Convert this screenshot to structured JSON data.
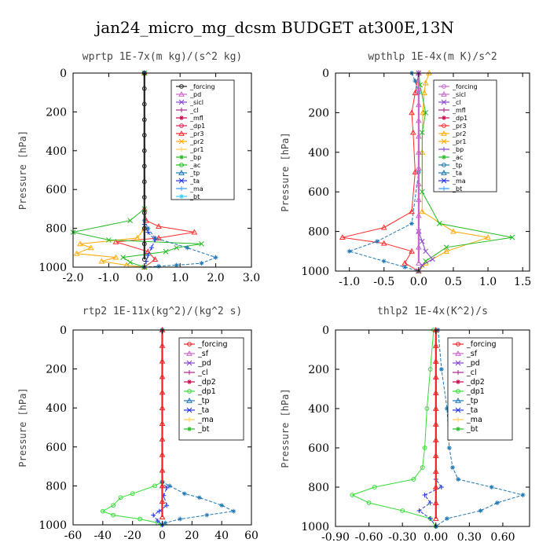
{
  "figure_title": "jan24_micro_mg_dcsm  BUDGET at300E,13N",
  "chart_data": [
    {
      "type": "line",
      "title": "wprtp  1E-7x(m kg)/(s^2 kg)",
      "ylabel": "Pressure [hPa]",
      "xlim": [
        -2.0,
        3.0
      ],
      "ylim": [
        1000,
        0
      ],
      "xticks": [
        "-2.0",
        "-1.0",
        "0.0",
        "1.0",
        "2.0",
        "3.0"
      ],
      "yticks": [
        "0",
        "200",
        "400",
        "600",
        "800",
        "1000"
      ],
      "legend": [
        "_forcing",
        "_pd",
        "_sicl",
        "_cl",
        "_mfl",
        "_dp1",
        "_pr3",
        "_pr2",
        "_pr1",
        "_bp",
        "_ac",
        "_tp",
        "_ta",
        "_ma",
        "_bt"
      ],
      "series": [
        {
          "name": "_pr3",
          "color": "#ff2a2a",
          "marker": "tri",
          "x": [
            0,
            0,
            0.05,
            0.4,
            1.4,
            0.4,
            -0.8,
            0.1,
            0.3,
            0
          ],
          "y": [
            0,
            700,
            760,
            790,
            820,
            850,
            870,
            920,
            960,
            1000
          ]
        },
        {
          "name": "_pr2",
          "color": "#ffaa00",
          "marker": "tri",
          "x": [
            0,
            0,
            -0.2,
            -1.8,
            -1.5,
            -1.9,
            -0.8,
            -1.2,
            -0.5,
            0
          ],
          "y": [
            0,
            800,
            850,
            880,
            900,
            930,
            950,
            970,
            990,
            1000
          ]
        },
        {
          "name": "_ac",
          "color": "#22bb22",
          "marker": "x",
          "x": [
            0,
            0,
            -0.4,
            -2.0,
            -1.0,
            1.6,
            0.9,
            0.6,
            -0.6,
            -0.4,
            0
          ],
          "y": [
            0,
            700,
            760,
            820,
            860,
            880,
            900,
            920,
            950,
            975,
            1000
          ]
        },
        {
          "name": "_tp",
          "color": "#1f77b4",
          "marker": "star",
          "x": [
            0,
            0,
            0.1,
            0.3,
            1.2,
            2.0,
            1.6,
            0.9,
            0.4,
            0
          ],
          "y": [
            0,
            760,
            800,
            850,
            900,
            950,
            980,
            990,
            995,
            1000
          ]
        },
        {
          "name": "_ta",
          "color": "#2233dd",
          "marker": "plus",
          "x": [
            0,
            0,
            0.1,
            0.3,
            0.2,
            0.1,
            0.05,
            0
          ],
          "y": [
            0,
            780,
            820,
            860,
            900,
            940,
            970,
            1000
          ]
        },
        {
          "name": "_forcing",
          "color": "#222222",
          "marker": "circle",
          "x": [
            0,
            0,
            0,
            0,
            0,
            0,
            0,
            0,
            0,
            0,
            0,
            0,
            0
          ],
          "y": [
            0,
            80,
            160,
            240,
            320,
            400,
            480,
            560,
            640,
            720,
            800,
            880,
            960
          ]
        }
      ]
    },
    {
      "type": "line",
      "title": "wpthlp  1E-4x(m K)/s^2",
      "ylabel": "Pressure [hPa]",
      "xlim": [
        -1.2,
        1.6
      ],
      "ylim": [
        1000,
        0
      ],
      "xticks": [
        "-1.0",
        "-0.5",
        "0.0",
        "0.5",
        "1.0",
        "1.5"
      ],
      "yticks": [
        "0",
        "200",
        "400",
        "600",
        "800",
        "1000"
      ],
      "legend": [
        "_forcing",
        "_sicl",
        "_cl",
        "_mfl",
        "_dp1",
        "_pr3",
        "_pr2",
        "_pr1",
        "_bp",
        "_ac",
        "_tp",
        "_ta",
        "_ma",
        "_bt"
      ],
      "series": [
        {
          "name": "_pr3",
          "color": "#ff2a2a",
          "marker": "tri",
          "x": [
            0,
            -0.05,
            -0.1,
            -0.08,
            -0.05,
            -0.1,
            -0.5,
            -1.1,
            -0.5,
            -0.1,
            -0.2,
            0
          ],
          "y": [
            0,
            100,
            200,
            300,
            500,
            700,
            780,
            830,
            860,
            900,
            960,
            1000
          ]
        },
        {
          "name": "_pr2",
          "color": "#ffaa00",
          "marker": "tri",
          "x": [
            0.15,
            0.1,
            0.08,
            0.06,
            0.05,
            0.05,
            0.5,
            1.0,
            0.4,
            0.1,
            0
          ],
          "y": [
            0,
            50,
            100,
            200,
            400,
            700,
            800,
            830,
            900,
            960,
            1000
          ]
        },
        {
          "name": "_ac",
          "color": "#22bb22",
          "marker": "x",
          "x": [
            0,
            0.02,
            0.1,
            0.05,
            0.05,
            0.3,
            1.35,
            0.4,
            0.1,
            0
          ],
          "y": [
            0,
            60,
            200,
            300,
            600,
            760,
            830,
            880,
            950,
            1000
          ]
        },
        {
          "name": "_tp",
          "color": "#1f77b4",
          "marker": "star",
          "x": [
            -0.1,
            -0.05,
            0,
            0,
            -0.1,
            -0.6,
            -1.0,
            -0.5,
            -0.2,
            0
          ],
          "y": [
            0,
            40,
            100,
            500,
            760,
            850,
            900,
            950,
            980,
            1000
          ]
        },
        {
          "name": "_bp",
          "color": "#8844cc",
          "marker": "x",
          "x": [
            0,
            0,
            0.05,
            0.1,
            0.2,
            0.05,
            0
          ],
          "y": [
            0,
            800,
            850,
            900,
            940,
            970,
            1000
          ]
        },
        {
          "name": "_forcing",
          "color": "#cc66cc",
          "marker": "tri",
          "x": [
            0,
            0,
            0,
            0,
            0,
            0,
            0,
            0,
            0,
            0,
            0,
            0,
            0
          ],
          "y": [
            0,
            80,
            160,
            240,
            320,
            400,
            480,
            560,
            640,
            720,
            800,
            880,
            960
          ]
        }
      ]
    },
    {
      "type": "line",
      "title": "rtp2  1E-11x(kg^2)/(kg^2 s)",
      "ylabel": "Pressure [hPa]",
      "xlim": [
        -60,
        60
      ],
      "ylim": [
        1000,
        0
      ],
      "xticks": [
        "-60",
        "-40",
        "-20",
        "0",
        "20",
        "40",
        "60"
      ],
      "yticks": [
        "0",
        "200",
        "400",
        "600",
        "800",
        "1000"
      ],
      "legend": [
        "_forcing",
        "_sf",
        "_pd",
        "_cl",
        "_dp2",
        "_dp1",
        "_tp",
        "_ta",
        "_ma",
        "_bt"
      ],
      "series": [
        {
          "name": "_dp1",
          "color": "#33dd33",
          "marker": "circle",
          "x": [
            0,
            0,
            -5,
            -20,
            -28,
            -33,
            -40,
            -33,
            -15,
            -3,
            0
          ],
          "y": [
            0,
            780,
            800,
            840,
            860,
            900,
            930,
            950,
            970,
            990,
            1000
          ]
        },
        {
          "name": "_tp",
          "color": "#1f77b4",
          "marker": "star",
          "x": [
            0,
            0,
            5,
            15,
            25,
            40,
            48,
            30,
            12,
            2,
            0
          ],
          "y": [
            0,
            780,
            800,
            840,
            860,
            900,
            930,
            950,
            970,
            990,
            1000
          ]
        },
        {
          "name": "_ta",
          "color": "#2233dd",
          "marker": "plus",
          "x": [
            0,
            0,
            3,
            1,
            3,
            -2,
            -6,
            -3,
            0
          ],
          "y": [
            0,
            780,
            810,
            850,
            900,
            930,
            950,
            980,
            1000
          ]
        },
        {
          "name": "_forcing",
          "color": "#ee2222",
          "marker": "tri",
          "x": [
            0,
            0,
            0,
            0,
            0,
            0,
            0,
            0,
            0,
            0,
            0,
            0,
            0
          ],
          "y": [
            0,
            80,
            160,
            240,
            320,
            400,
            480,
            560,
            640,
            720,
            800,
            880,
            960
          ]
        }
      ]
    },
    {
      "type": "line",
      "title": "thlp2  1E-4x(K^2)/s",
      "ylabel": "Pressure [hPa]",
      "xlim": [
        -0.9,
        0.84
      ],
      "ylim": [
        1000,
        0
      ],
      "xticks": [
        "-0.90",
        "-0.60",
        "-0.30",
        "0.00",
        "0.30",
        "0.60"
      ],
      "yticks": [
        "0",
        "200",
        "400",
        "600",
        "800",
        "1000"
      ],
      "legend": [
        "_forcing",
        "_sf",
        "_pd",
        "_cl",
        "_dp2",
        "_dp1",
        "_tp",
        "_ta",
        "_ma",
        "_bt"
      ],
      "series": [
        {
          "name": "_dp1",
          "color": "#33dd33",
          "marker": "circle",
          "x": [
            -0.02,
            -0.05,
            -0.08,
            -0.1,
            -0.12,
            -0.2,
            -0.55,
            -0.75,
            -0.6,
            -0.3,
            -0.05,
            0
          ],
          "y": [
            0,
            200,
            400,
            600,
            700,
            760,
            800,
            840,
            880,
            920,
            960,
            1000
          ]
        },
        {
          "name": "_tp",
          "color": "#1f77b4",
          "marker": "star",
          "x": [
            0.02,
            0.05,
            0.1,
            0.12,
            0.15,
            0.2,
            0.5,
            0.78,
            0.55,
            0.4,
            0.1,
            0
          ],
          "y": [
            0,
            200,
            400,
            600,
            700,
            760,
            800,
            840,
            880,
            920,
            960,
            1000
          ]
        },
        {
          "name": "_ta",
          "color": "#2233dd",
          "marker": "plus",
          "x": [
            0,
            0,
            0.05,
            -0.1,
            -0.05,
            -0.15,
            -0.05,
            0
          ],
          "y": [
            0,
            760,
            800,
            840,
            880,
            920,
            960,
            1000
          ]
        },
        {
          "name": "_forcing",
          "color": "#ee2222",
          "marker": "tri",
          "x": [
            0,
            0,
            0,
            0,
            0,
            0,
            0,
            0,
            0,
            0,
            0,
            0,
            0
          ],
          "y": [
            0,
            80,
            160,
            240,
            320,
            400,
            480,
            560,
            640,
            720,
            800,
            880,
            960
          ]
        }
      ]
    }
  ]
}
